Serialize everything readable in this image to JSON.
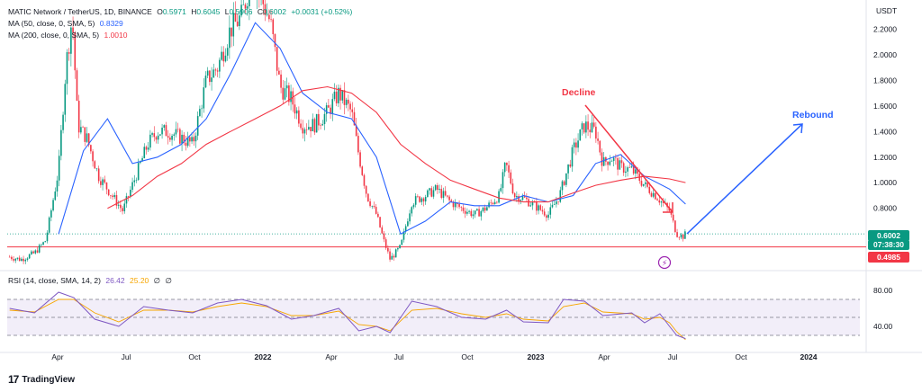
{
  "header": {
    "symbol_line": "MATIC Network / TetherUS, 1D, BINANCE",
    "open_label": "O",
    "open": "0.5971",
    "high_label": "H",
    "high": "0.6045",
    "low_label": "L",
    "low": "0.5906",
    "close_label": "C",
    "close": "0.6002",
    "change": "+0.0031 (+0.52%)",
    "ma50_label": "MA (50, close, 0, SMA, 5)",
    "ma50_value": "0.8329",
    "ma200_label": "MA (200, close, 0, SMA, 5)",
    "ma200_value": "1.0010"
  },
  "rsi_legend": {
    "label": "RSI (14, close, SMA, 14, 2)",
    "rsi": "26.42",
    "sma": "25.20",
    "empty1": "∅",
    "empty2": "∅"
  },
  "branding": {
    "logo_mark": "17",
    "name": "TradingView"
  },
  "colors": {
    "up": "#089981",
    "down": "#f23645",
    "ma50": "#2962ff",
    "ma200": "#f23645",
    "rsi": "#7e57c2",
    "rsi_sma": "#f7a600",
    "decline": "#f23645",
    "rebound": "#2962ff"
  },
  "chart_data": {
    "type": "candlestick",
    "currency": "USDT",
    "y_ticks": [
      "2.2000",
      "2.0000",
      "1.8000",
      "1.6000",
      "1.4000",
      "1.2000",
      "1.0000",
      "0.8000"
    ],
    "ylim": [
      0.32,
      2.4
    ],
    "x_ticks": [
      "Apr",
      "Jul",
      "Oct",
      "2022",
      "Apr",
      "Jul",
      "Oct",
      "2023",
      "Apr",
      "Jul",
      "Oct",
      "2024"
    ],
    "current_price": "0.6002",
    "countdown": "07:38:30",
    "support_level": "0.4985",
    "annotations": [
      {
        "text": "Decline",
        "color": "red"
      },
      {
        "text": "Rebound",
        "color": "blue"
      }
    ],
    "close_series": {
      "dates": [
        "2021-03-01",
        "2021-03-15",
        "2021-04-01",
        "2021-04-15",
        "2021-05-01",
        "2021-05-10",
        "2021-05-18",
        "2021-05-25",
        "2021-06-05",
        "2021-06-20",
        "2021-07-01",
        "2021-07-20",
        "2021-08-05",
        "2021-08-20",
        "2021-09-01",
        "2021-09-15",
        "2021-10-01",
        "2021-10-15",
        "2021-11-01",
        "2021-11-15",
        "2021-12-01",
        "2021-12-15",
        "2021-12-27",
        "2022-01-08",
        "2022-01-20",
        "2022-02-01",
        "2022-02-15",
        "2022-03-01",
        "2022-03-15",
        "2022-04-01",
        "2022-04-15",
        "2022-05-01",
        "2022-05-09",
        "2022-05-20",
        "2022-06-01",
        "2022-06-10",
        "2022-06-18",
        "2022-07-01",
        "2022-07-15",
        "2022-08-01",
        "2022-08-15",
        "2022-09-01",
        "2022-09-15",
        "2022-10-01",
        "2022-10-15",
        "2022-11-01",
        "2022-11-09",
        "2022-11-20",
        "2022-12-01",
        "2022-12-15",
        "2023-01-01",
        "2023-01-15",
        "2023-02-01",
        "2023-02-15",
        "2023-03-01",
        "2023-03-10",
        "2023-03-20",
        "2023-04-01",
        "2023-04-15",
        "2023-05-01",
        "2023-05-15",
        "2023-06-01",
        "2023-06-10",
        "2023-06-18",
        "2023-06-21"
      ],
      "values": [
        0.42,
        0.4,
        0.45,
        0.55,
        1.1,
        1.9,
        2.3,
        1.45,
        1.35,
        1.05,
        0.95,
        0.78,
        1.05,
        1.3,
        1.4,
        1.4,
        1.35,
        1.3,
        1.8,
        1.9,
        2.2,
        2.3,
        2.6,
        2.45,
        2.25,
        1.75,
        1.65,
        1.45,
        1.45,
        1.55,
        1.7,
        1.55,
        1.25,
        0.9,
        0.75,
        0.55,
        0.4,
        0.5,
        0.85,
        0.9,
        0.95,
        0.85,
        0.8,
        0.75,
        0.8,
        0.9,
        1.15,
        0.9,
        0.88,
        0.82,
        0.75,
        0.9,
        1.25,
        1.45,
        1.4,
        1.15,
        1.2,
        1.12,
        1.1,
        0.98,
        0.9,
        0.78,
        0.6,
        0.58,
        0.6002
      ]
    },
    "ma50": {
      "dates": [
        "2021-05-01",
        "2021-06-01",
        "2021-07-01",
        "2021-08-01",
        "2021-09-01",
        "2021-10-01",
        "2021-11-01",
        "2021-12-01",
        "2022-01-01",
        "2022-02-01",
        "2022-03-01",
        "2022-04-01",
        "2022-05-01",
        "2022-06-01",
        "2022-07-01",
        "2022-08-01",
        "2022-09-01",
        "2022-10-01",
        "2022-11-01",
        "2022-12-01",
        "2023-01-01",
        "2023-02-01",
        "2023-03-01",
        "2023-04-01",
        "2023-05-01",
        "2023-06-01",
        "2023-06-21"
      ],
      "values": [
        0.6,
        1.25,
        1.5,
        1.15,
        1.2,
        1.3,
        1.5,
        1.85,
        2.25,
        2.05,
        1.7,
        1.55,
        1.5,
        1.2,
        0.6,
        0.7,
        0.85,
        0.82,
        0.82,
        0.9,
        0.85,
        0.9,
        1.15,
        1.22,
        1.05,
        0.95,
        0.8329
      ]
    },
    "ma200": {
      "dates": [
        "2021-07-01",
        "2021-08-01",
        "2021-09-01",
        "2021-10-01",
        "2021-11-01",
        "2021-12-01",
        "2022-01-01",
        "2022-02-01",
        "2022-03-01",
        "2022-04-01",
        "2022-05-01",
        "2022-06-01",
        "2022-07-01",
        "2022-08-01",
        "2022-09-01",
        "2022-10-01",
        "2022-11-01",
        "2022-12-01",
        "2023-01-01",
        "2023-02-01",
        "2023-03-01",
        "2023-04-01",
        "2023-05-01",
        "2023-06-01",
        "2023-06-21"
      ],
      "values": [
        0.8,
        0.9,
        1.05,
        1.15,
        1.3,
        1.4,
        1.5,
        1.6,
        1.72,
        1.75,
        1.7,
        1.55,
        1.3,
        1.15,
        1.02,
        0.95,
        0.88,
        0.85,
        0.85,
        0.92,
        0.98,
        1.02,
        1.05,
        1.03,
        1.001
      ]
    },
    "rsi": {
      "ticks": [
        "80.00",
        "40.00"
      ],
      "ylim": [
        25,
        85
      ],
      "band": [
        30,
        70
      ],
      "dates": [
        "2021-03-01",
        "2021-04-01",
        "2021-05-01",
        "2021-05-20",
        "2021-06-15",
        "2021-07-15",
        "2021-08-15",
        "2021-09-15",
        "2021-10-15",
        "2021-11-15",
        "2021-12-15",
        "2022-01-15",
        "2022-02-15",
        "2022-03-15",
        "2022-04-15",
        "2022-05-10",
        "2022-06-01",
        "2022-06-18",
        "2022-07-15",
        "2022-08-15",
        "2022-09-15",
        "2022-10-15",
        "2022-11-10",
        "2022-12-01",
        "2023-01-01",
        "2023-01-20",
        "2023-02-15",
        "2023-03-10",
        "2023-04-15",
        "2023-05-01",
        "2023-05-20",
        "2023-06-01",
        "2023-06-10",
        "2023-06-21"
      ],
      "values": [
        60,
        55,
        78,
        72,
        48,
        40,
        62,
        58,
        55,
        66,
        70,
        63,
        48,
        52,
        60,
        35,
        40,
        33,
        68,
        62,
        50,
        48,
        58,
        45,
        44,
        70,
        68,
        52,
        55,
        44,
        54,
        40,
        30,
        26.42
      ],
      "sma_values": [
        58,
        56,
        70,
        70,
        55,
        45,
        58,
        58,
        56,
        62,
        66,
        62,
        52,
        52,
        57,
        42,
        40,
        35,
        58,
        60,
        54,
        50,
        54,
        48,
        46,
        62,
        66,
        56,
        54,
        48,
        50,
        44,
        34,
        25.2
      ]
    }
  }
}
